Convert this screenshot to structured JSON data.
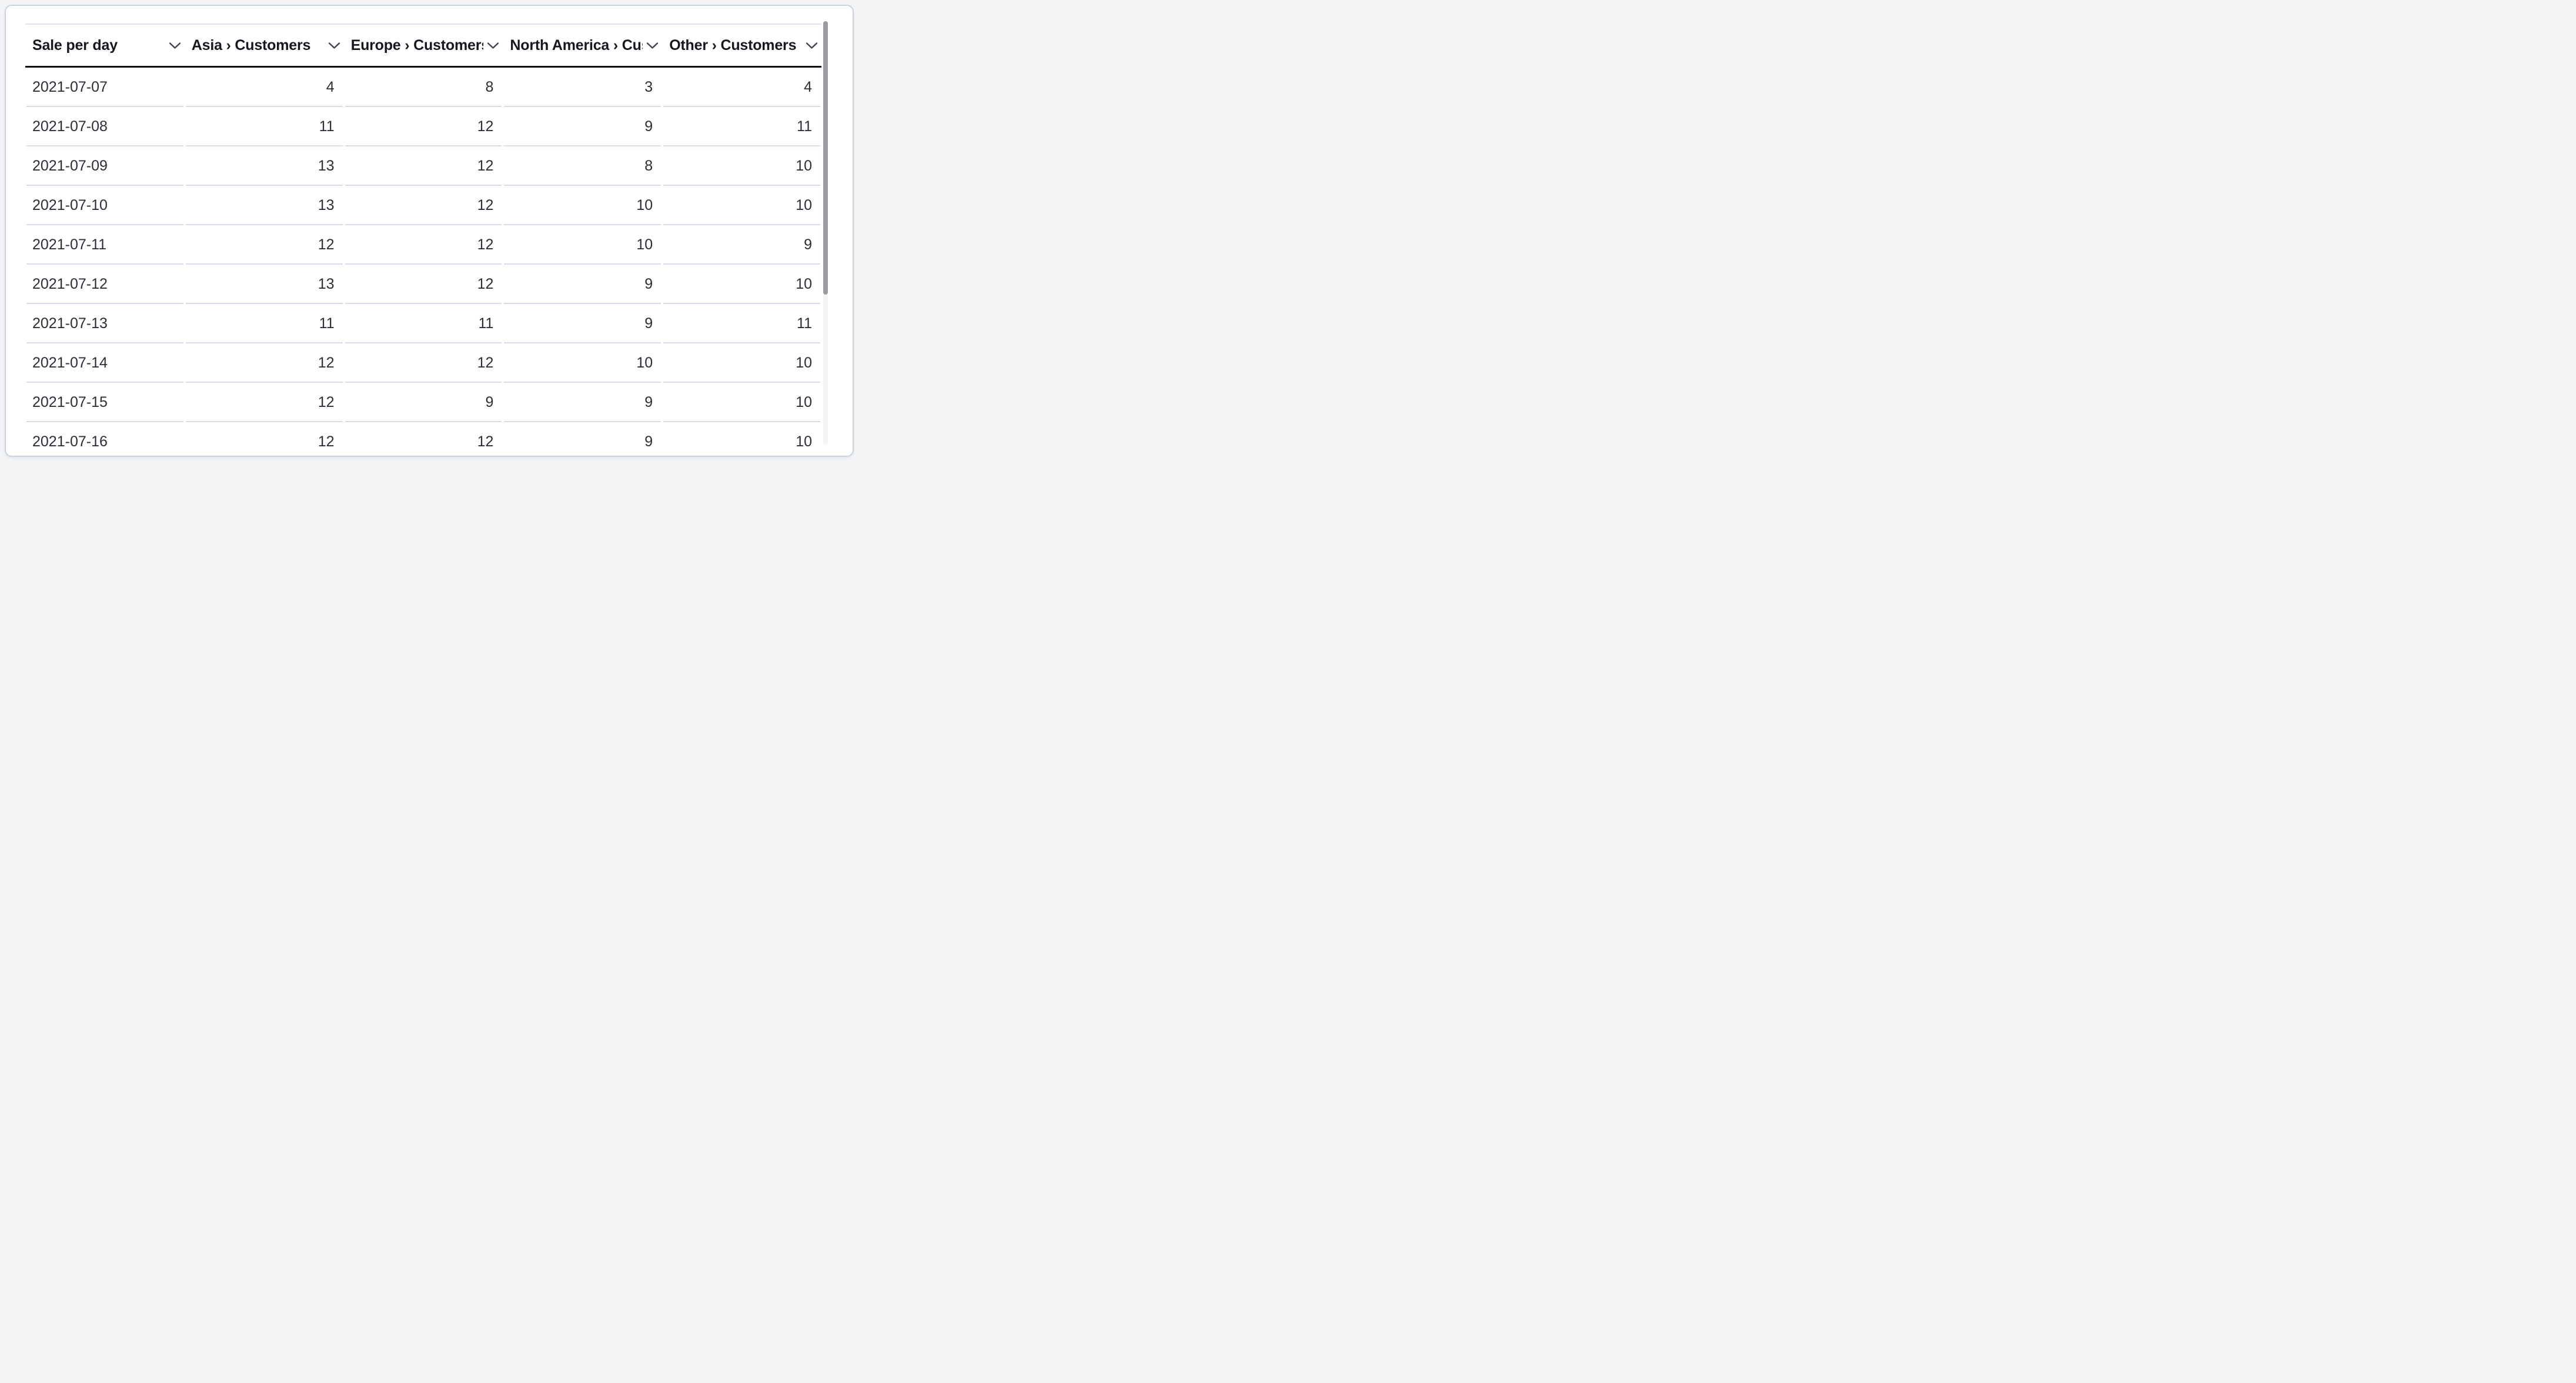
{
  "table": {
    "columns": [
      {
        "label": "Sale per day"
      },
      {
        "label": "Asia › Customers"
      },
      {
        "label": "Europe › Customers"
      },
      {
        "label": "North America › Customers"
      },
      {
        "label": "Other › Customers"
      }
    ],
    "rows": [
      [
        "2021-07-07",
        4,
        8,
        3,
        4
      ],
      [
        "2021-07-08",
        11,
        12,
        9,
        11
      ],
      [
        "2021-07-09",
        13,
        12,
        8,
        10
      ],
      [
        "2021-07-10",
        13,
        12,
        10,
        10
      ],
      [
        "2021-07-11",
        12,
        12,
        10,
        9
      ],
      [
        "2021-07-12",
        13,
        12,
        9,
        10
      ],
      [
        "2021-07-13",
        11,
        11,
        9,
        11
      ],
      [
        "2021-07-14",
        12,
        12,
        10,
        10
      ],
      [
        "2021-07-15",
        12,
        9,
        9,
        10
      ],
      [
        "2021-07-16",
        12,
        12,
        9,
        10
      ]
    ]
  },
  "icons": {
    "header_sort": "chevron-down-icon"
  },
  "colors": {
    "page_background": "#f4f5f7",
    "card_background": "#ffffff",
    "card_border": "#c9d3e0",
    "header_text": "#15181f",
    "body_text": "#2b2e37",
    "header_bottom_border": "#0d0f14",
    "row_divider": "#d6dde6",
    "table_top_border": "#dbe2ea",
    "chevron": "#3e4450",
    "scrollbar_thumb": "#9b9ca2"
  },
  "scrollbar": {
    "orientation": "vertical",
    "thumb_position": "top",
    "visible_rows": 9
  }
}
